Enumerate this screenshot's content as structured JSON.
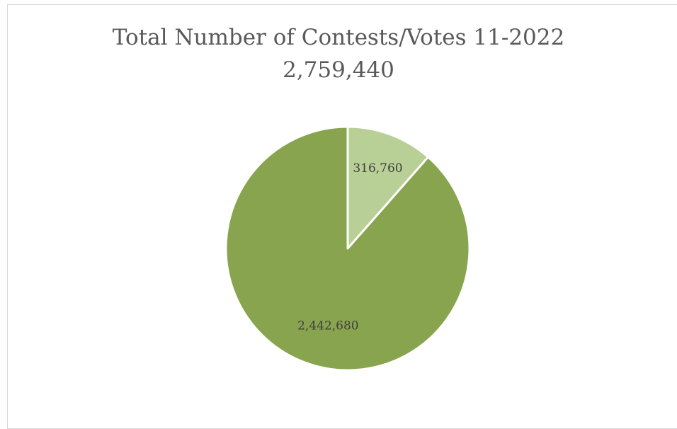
{
  "chart_data": {
    "type": "pie",
    "title": "Total Number of Contests/Votes 11-2022",
    "subtitle": "2,759,440",
    "slices": [
      {
        "value": 316760,
        "label": "316,760",
        "color": "#b8cf95"
      },
      {
        "value": 2442680,
        "label": "2,442,680",
        "color": "#88a44e"
      }
    ],
    "legend": "none"
  }
}
